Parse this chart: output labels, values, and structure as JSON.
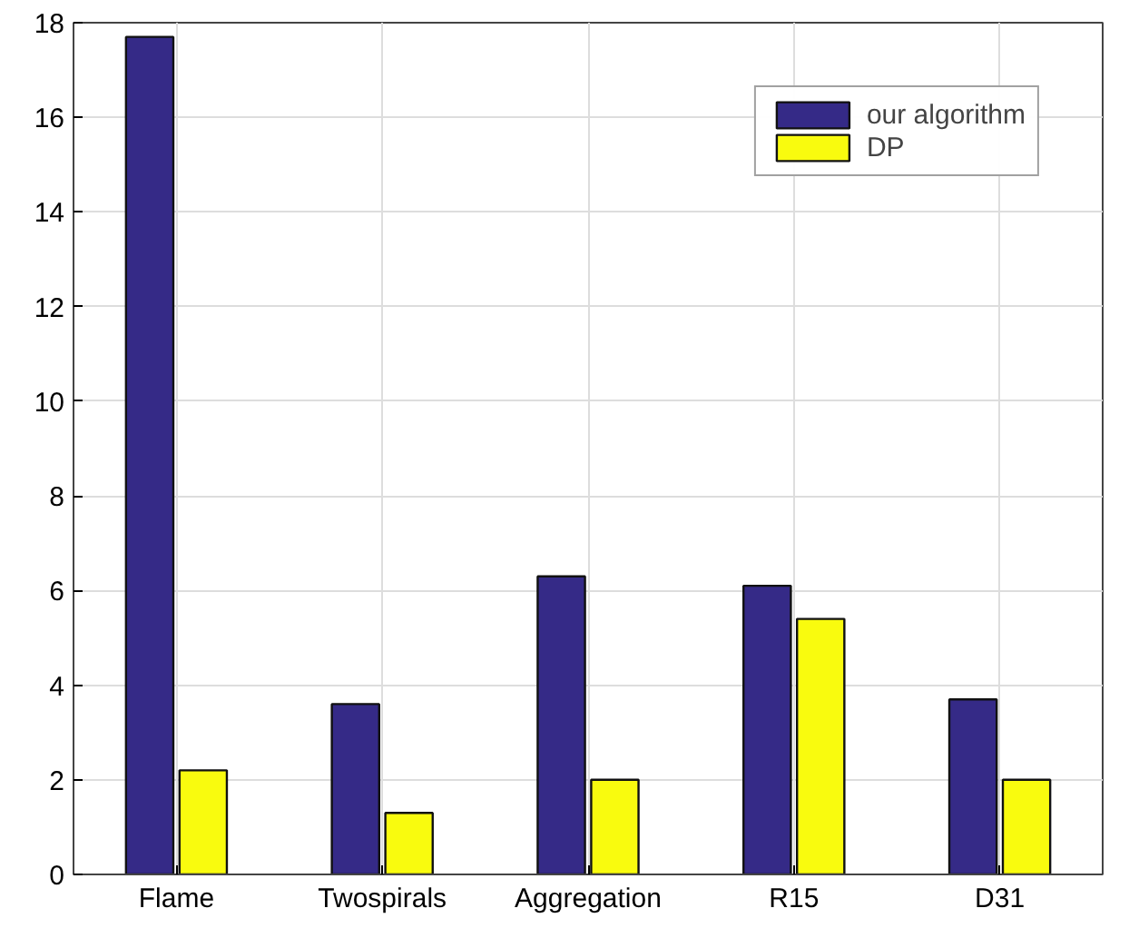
{
  "chart_data": {
    "type": "bar",
    "categories": [
      "Flame",
      "Twospirals",
      "Aggregation",
      "R15",
      "D31"
    ],
    "series": [
      {
        "name": "our algorithm",
        "color": "#352a87",
        "values": [
          17.7,
          3.6,
          6.3,
          6.1,
          3.7
        ]
      },
      {
        "name": "DP",
        "color": "#f9fb0e",
        "values": [
          2.2,
          1.3,
          2.0,
          5.4,
          2.0
        ]
      }
    ],
    "ylim": [
      0,
      18
    ],
    "yticks": [
      0,
      2,
      4,
      6,
      8,
      10,
      12,
      14,
      16,
      18
    ],
    "grid": true,
    "legend": "top right"
  }
}
